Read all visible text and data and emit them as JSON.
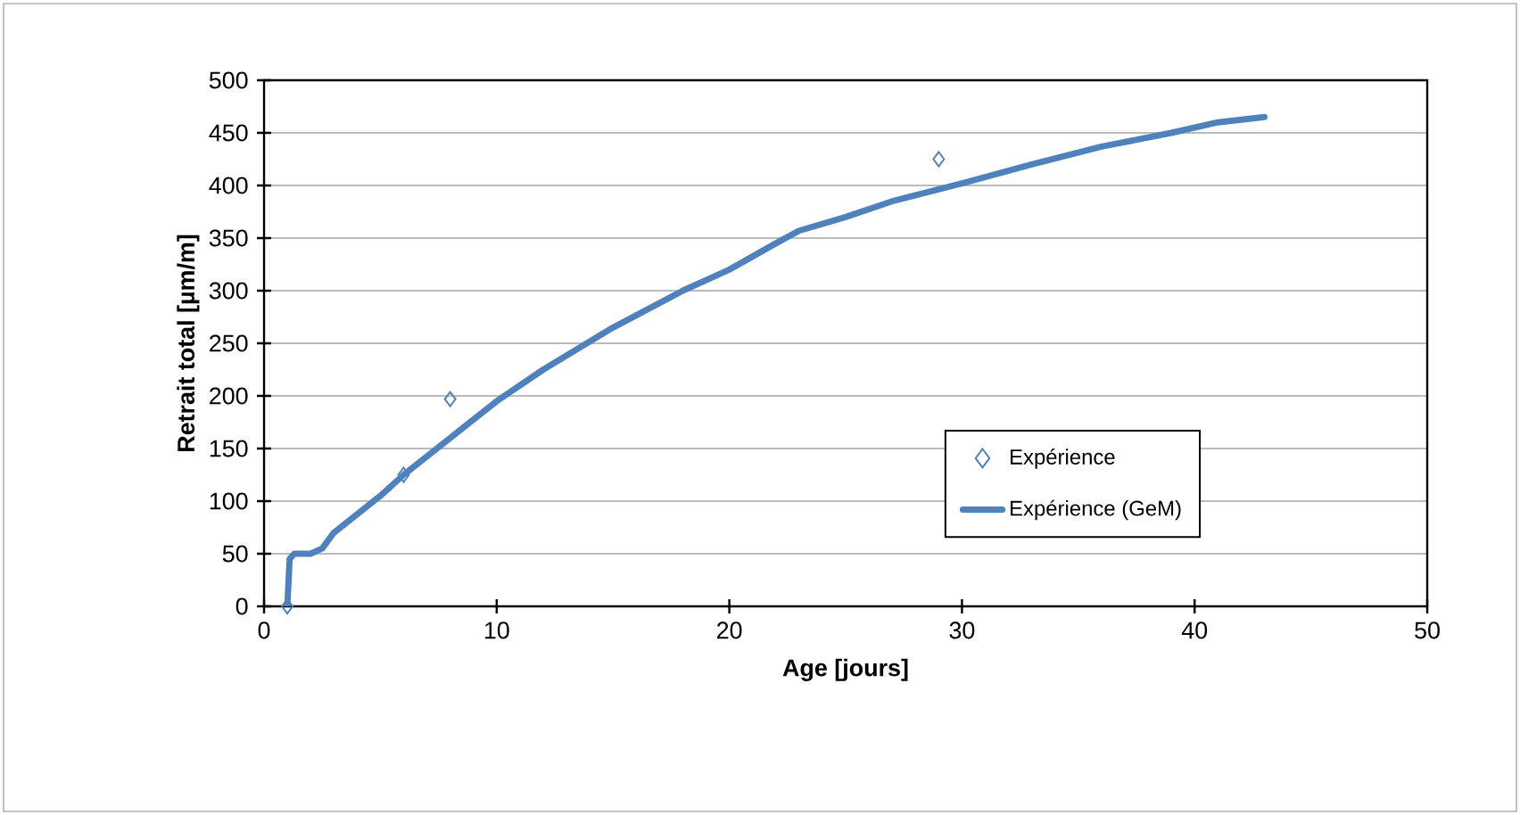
{
  "chart_data": {
    "type": "line",
    "xlabel": "Age [jours]",
    "ylabel": "Retrait total [µm/m]",
    "xlim": [
      0,
      50
    ],
    "xticks": [
      0,
      10,
      20,
      30,
      40,
      50
    ],
    "ylim": [
      0,
      500
    ],
    "yticks": [
      0,
      50,
      100,
      150,
      200,
      250,
      300,
      350,
      400,
      450,
      500
    ],
    "grid": "y",
    "legend": "right",
    "series": [
      {
        "name": "Expérience",
        "type": "scatter",
        "marker": "diamond",
        "color": "#4f81bd",
        "x": [
          1,
          6,
          8,
          29
        ],
        "values": [
          0,
          125,
          197,
          425
        ]
      },
      {
        "name": "Expérience (GeM)",
        "marker": "none",
        "line_style": "solid",
        "color": "#4f81bd",
        "x": [
          1,
          1.1,
          1.3,
          2,
          2.5,
          3,
          5,
          6,
          8,
          10,
          12,
          15,
          18,
          20,
          22,
          23,
          25,
          27,
          30,
          33,
          36,
          39,
          41,
          43
        ],
        "values": [
          0,
          45,
          50,
          50,
          55,
          70,
          105,
          125,
          160,
          195,
          225,
          265,
          300,
          320,
          345,
          357,
          370,
          385,
          402,
          420,
          437,
          450,
          460,
          465
        ]
      }
    ]
  }
}
